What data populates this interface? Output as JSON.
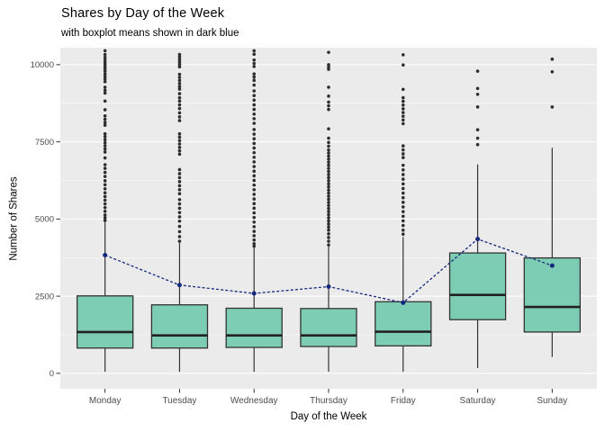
{
  "title": "Shares by Day of the Week",
  "subtitle": "with boxplot means shown in dark blue",
  "chart_data": {
    "type": "boxplot",
    "title": "Shares by Day of the Week",
    "subtitle": "with boxplot means shown in dark blue",
    "xlabel": "Day of the Week",
    "ylabel": "Number of Shares",
    "categories": [
      "Monday",
      "Tuesday",
      "Wednesday",
      "Thursday",
      "Friday",
      "Saturday",
      "Sunday"
    ],
    "y_ticks": [
      0,
      2500,
      5000,
      7500,
      10000
    ],
    "y_minor_ticks": [
      1250,
      3750,
      6250,
      8750
    ],
    "ylim": [
      -500,
      10550
    ],
    "grid": true,
    "legend": "none",
    "boxes": [
      {
        "day": "Monday",
        "q1": 820,
        "median": 1340,
        "q3": 2510,
        "whisker_low": 50,
        "whisker_high": 4890,
        "mean": 3830,
        "outliers": [
          10450,
          10330,
          10240,
          10160,
          10080,
          10010,
          9930,
          9860,
          9790,
          9700,
          9620,
          9540,
          9450,
          9270,
          9170,
          9080,
          8820,
          8540,
          8340,
          8230,
          8130,
          8040,
          7760,
          7670,
          7570,
          7470,
          7370,
          7270,
          7170,
          6980,
          6760,
          6640,
          6510,
          6380,
          6240,
          6110,
          5980,
          5850,
          5730,
          5610,
          5490,
          5370,
          5250,
          5130,
          5040,
          4950
        ]
      },
      {
        "day": "Tuesday",
        "q1": 820,
        "median": 1230,
        "q3": 2220,
        "whisker_low": 50,
        "whisker_high": 4220,
        "mean": 2860,
        "outliers": [
          10330,
          10250,
          10170,
          10090,
          10010,
          9930,
          9690,
          9590,
          9490,
          9390,
          9290,
          9210,
          9060,
          8930,
          8820,
          8700,
          8580,
          8440,
          8310,
          8190,
          7760,
          7650,
          7540,
          7430,
          7320,
          7210,
          7100,
          6600,
          6470,
          6340,
          6210,
          6080,
          5950,
          5820,
          5630,
          5490,
          5350,
          5210,
          5070,
          4930,
          4760,
          4590,
          4430,
          4280
        ]
      },
      {
        "day": "Wednesday",
        "q1": 840,
        "median": 1230,
        "q3": 2110,
        "whisker_low": 50,
        "whisker_high": 4110,
        "mean": 2590,
        "outliers": [
          10450,
          10340,
          10150,
          10040,
          9940,
          9700,
          9600,
          9490,
          9340,
          9150,
          9000,
          8850,
          8700,
          8550,
          8400,
          8250,
          8100,
          7900,
          7750,
          7600,
          7450,
          7300,
          7150,
          7000,
          6850,
          6700,
          6550,
          6400,
          6250,
          6100,
          5950,
          5800,
          5650,
          5500,
          5350,
          5200,
          5050,
          4900,
          4750,
          4600,
          4460,
          4320,
          4200,
          4120
        ]
      },
      {
        "day": "Thursday",
        "q1": 870,
        "median": 1230,
        "q3": 2100,
        "whisker_low": 50,
        "whisker_high": 4140,
        "mean": 2810,
        "outliers": [
          10400,
          10000,
          9920,
          9850,
          9270,
          8980,
          8790,
          8670,
          8550,
          7920,
          7620,
          7480,
          7360,
          7240,
          7140,
          7040,
          6940,
          6840,
          6740,
          6640,
          6540,
          6440,
          6340,
          6240,
          6140,
          6040,
          5940,
          5840,
          5740,
          5640,
          5540,
          5440,
          5340,
          5240,
          5140,
          5040,
          4940,
          4840,
          4740,
          4640,
          4520,
          4400,
          4280,
          4160
        ]
      },
      {
        "day": "Friday",
        "q1": 890,
        "median": 1350,
        "q3": 2320,
        "whisker_low": 50,
        "whisker_high": 4420,
        "mean": 2290,
        "outliers": [
          10320,
          9990,
          9200,
          8930,
          8810,
          8690,
          8570,
          8450,
          8330,
          8210,
          8090,
          7370,
          7240,
          7110,
          6990,
          6740,
          6590,
          6440,
          6290,
          6140,
          5990,
          5840,
          5690,
          5540,
          5390,
          5240,
          5090,
          4940,
          4790,
          4640,
          4510
        ]
      },
      {
        "day": "Saturday",
        "q1": 1740,
        "median": 2540,
        "q3": 3900,
        "whisker_low": 170,
        "whisker_high": 6770,
        "mean": 4350,
        "outliers": [
          9790,
          9230,
          9040,
          8630,
          7890,
          7620,
          7410
        ]
      },
      {
        "day": "Sunday",
        "q1": 1340,
        "median": 2150,
        "q3": 3740,
        "whisker_low": 530,
        "whisker_high": 7310,
        "mean": 3490,
        "outliers": [
          10180,
          9770,
          8630
        ]
      }
    ],
    "means": [
      3830,
      2860,
      2590,
      2810,
      2290,
      4350,
      3490
    ],
    "colors": {
      "page_bg": "#FFFFFF",
      "panel_bg": "#EBEBEB",
      "grid_major": "#FFFFFF",
      "grid_minor": "#FFFFFF",
      "box_fill": "#7DCDB4",
      "box_stroke": "#333333",
      "median_line": "#212121",
      "whisker": "#333333",
      "outlier": "#2E2E2E",
      "mean_line": "#14287E",
      "tick_label": "#4D4D4D",
      "axis_tick": "#333333",
      "text": "#000000"
    }
  }
}
